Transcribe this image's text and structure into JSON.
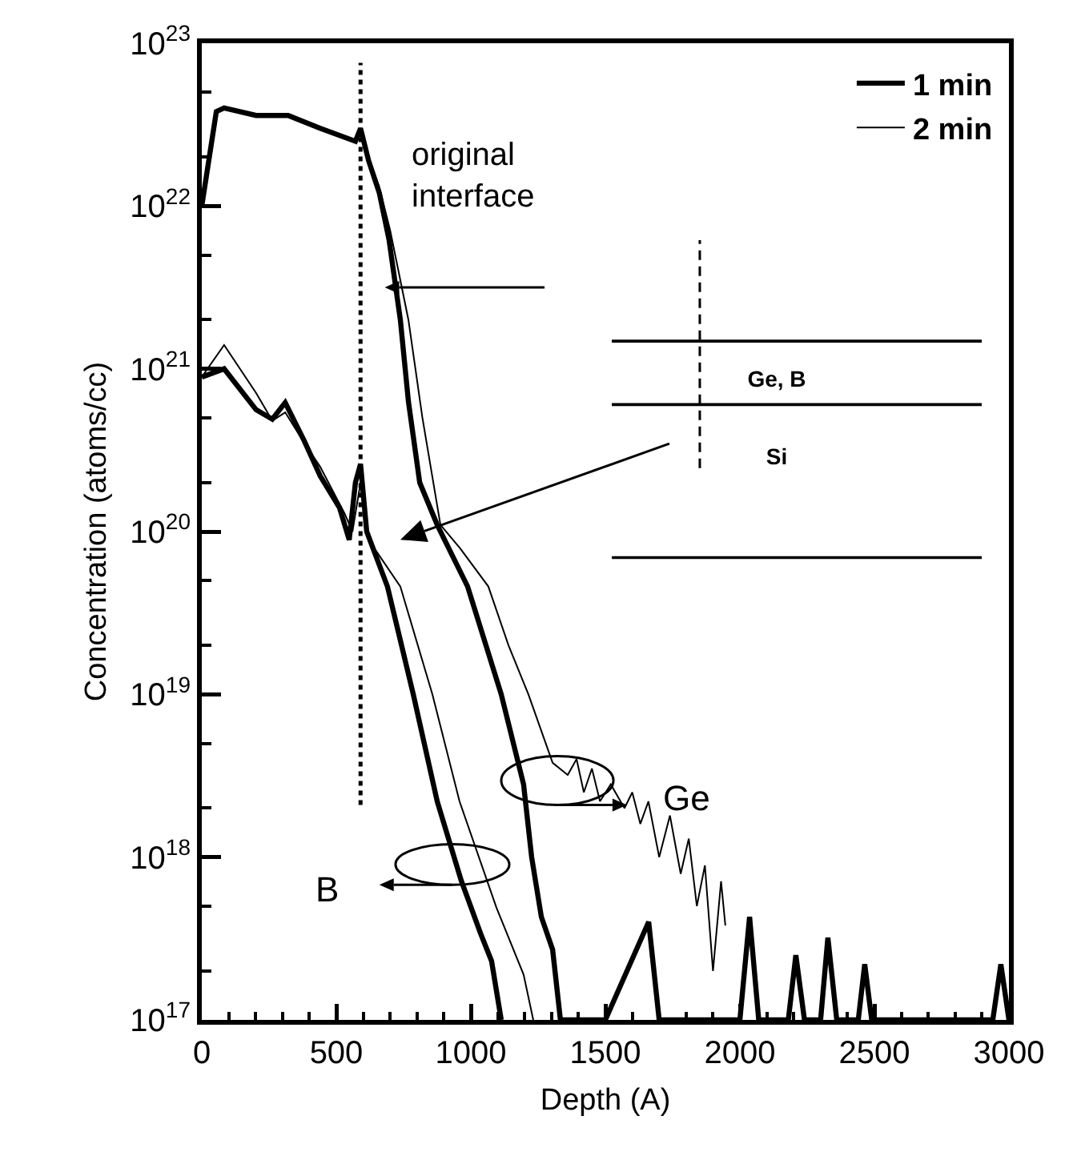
{
  "chart_data": {
    "type": "line",
    "xlabel": "Depth (A)",
    "ylabel": "Concentration (atoms/cc)",
    "xlim": [
      0,
      3000
    ],
    "xticks": [
      0,
      500,
      1000,
      1500,
      2000,
      2500,
      3000
    ],
    "ylim": [
      1e+17,
      1e+23
    ],
    "yticks": [
      {
        "value": 1e+17,
        "label": "10$^{17}$"
      },
      {
        "value": 1e+18,
        "label": "10$^{18}$"
      },
      {
        "value": 1e+19,
        "label": "10$^{19}$"
      },
      {
        "value": 1e+20,
        "label": "10$^{20}$"
      },
      {
        "value": 1e+21,
        "label": "10$^{21}$"
      },
      {
        "value": 1e+22,
        "label": "10$^{22}$"
      },
      {
        "value": 1e+23,
        "label": "10$^{23}$"
      }
    ],
    "log": "y",
    "grid": false,
    "legend": "top right",
    "line_style": "solid",
    "series": [
      {
        "name": "1 min",
        "color": "#000000",
        "x": [
          0,
          54,
          83,
          202,
          321,
          440,
          571,
          590,
          620,
          660,
          696,
          738,
          768,
          810,
          875,
          988,
          1113,
          1196,
          1226,
          1262,
          1304,
          1333,
          1500,
          1661,
          1700,
          2000,
          2036,
          2070,
          2180,
          2208,
          2240,
          2300,
          2327,
          2360,
          2440,
          2464,
          2490,
          2940,
          2970,
          3000
        ],
        "values": [
          1e+22,
          3.8e+22,
          4e+22,
          3.6e+22,
          3.6e+22,
          3e+22,
          2.5e+22,
          3e+22,
          1.9e+22,
          1.2e+22,
          6.2e+21,
          2e+21,
          6.3e+20,
          2e+20,
          1.1e+20,
          4.6e+19,
          1e+19,
          2.8e+18,
          1e+18,
          4.3e+17,
          2.7e+17,
          1e+17,
          1e+17,
          4e+17,
          1e+17,
          1e+17,
          4.3e+17,
          1e+17,
          1e+17,
          2.5e+17,
          1e+17,
          1e+17,
          3.2e+17,
          1e+17,
          1e+17,
          2.2e+17,
          1e+17,
          1e+17,
          2.2e+17,
          1e+17
        ]
      },
      {
        "name": "2 min",
        "color": "#000000",
        "x": [
          0,
          54,
          83,
          202,
          321,
          440,
          571,
          590,
          620,
          660,
          700,
          768,
          820,
          887,
          960,
          1065,
          1140,
          1214,
          1304,
          1360,
          1393,
          1420,
          1450,
          1480,
          1520,
          1571,
          1600,
          1630,
          1660,
          1700,
          1740,
          1780,
          1810,
          1840,
          1870,
          1900,
          1930,
          1946
        ],
        "values": [
          1e+22,
          3.8e+22,
          4e+22,
          3.6e+22,
          3.6e+22,
          3e+22,
          2.5e+22,
          3e+22,
          2e+22,
          1.3e+22,
          7.1e+21,
          2e+21,
          5e+20,
          1.1e+20,
          7.9e+19,
          4.6e+19,
          2e+19,
          1e+19,
          3.8e+18,
          3.2e+18,
          4e+18,
          2.5e+18,
          3.5e+18,
          2.2e+18,
          2.8e+18,
          2e+18,
          2.5e+18,
          1.6e+18,
          2.2e+18,
          1e+18,
          1.8e+18,
          7.9e+17,
          1.3e+18,
          5e+17,
          8.9e+17,
          2e+17,
          7.1e+17,
          3.8e+17
        ]
      },
      {
        "color": "#000000",
        "x": [
          0,
          83,
          202,
          262,
          310,
          381,
          440,
          512,
          548,
          571,
          590,
          613,
          690,
          786,
          875,
          964,
          1036,
          1077,
          1113
        ],
        "values": [
          8.9e+20,
          1e+21,
          5.6e+20,
          4.9e+20,
          6.2e+20,
          3.6e+20,
          2.2e+20,
          1.4e+20,
          8.9e+19,
          2e+20,
          2.6e+20,
          1e+20,
          4.6e+19,
          1e+19,
          2.2e+18,
          7.2e+17,
          3.4e+17,
          2.3e+17,
          1e+17
        ]
      },
      {
        "color": "#000000",
        "x": [
          0,
          83,
          202,
          262,
          310,
          381,
          440,
          530,
          560,
          590,
          620,
          738,
          857,
          958,
          1095,
          1196,
          1232
        ],
        "values": [
          8.9e+20,
          1.4e+21,
          7.1e+20,
          4.8e+20,
          5.4e+20,
          3.5e+20,
          2.5e+20,
          1.3e+20,
          1e+20,
          2e+20,
          8.9e+19,
          4.6e+19,
          1e+19,
          2.2e+18,
          4.9e+17,
          1.9e+17,
          1e+17
        ]
      }
    ],
    "ref_lines": [
      {
        "axis": "x",
        "value": 590,
        "line_style": "dotted",
        "color": "#000000"
      }
    ],
    "annotations": [
      "original interface",
      "Ge, B",
      "Si",
      "Ge",
      "B"
    ]
  }
}
